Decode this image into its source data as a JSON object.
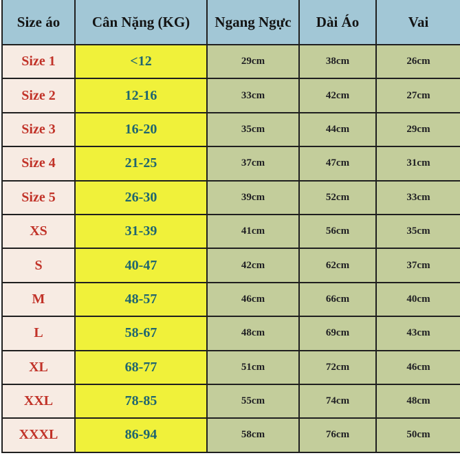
{
  "chart_data": {
    "type": "table",
    "title": "",
    "columns": [
      "Size áo",
      "Cân Nặng (KG)",
      "Ngang Ngực",
      "Dài Áo",
      "Vai"
    ],
    "rows": [
      [
        "Size 1",
        "<12",
        "29cm",
        "38cm",
        "26cm"
      ],
      [
        "Size 2",
        "12-16",
        "33cm",
        "42cm",
        "27cm"
      ],
      [
        "Size 3",
        "16-20",
        "35cm",
        "44cm",
        "29cm"
      ],
      [
        "Size 4",
        "21-25",
        "37cm",
        "47cm",
        "31cm"
      ],
      [
        "Size 5",
        "26-30",
        "39cm",
        "52cm",
        "33cm"
      ],
      [
        "XS",
        "31-39",
        "41cm",
        "56cm",
        "35cm"
      ],
      [
        "S",
        "40-47",
        "42cm",
        "62cm",
        "37cm"
      ],
      [
        "M",
        "48-57",
        "46cm",
        "66cm",
        "40cm"
      ],
      [
        "L",
        "58-67",
        "48cm",
        "69cm",
        "43cm"
      ],
      [
        "XL",
        "68-77",
        "51cm",
        "72cm",
        "46cm"
      ],
      [
        "XXL",
        "78-85",
        "55cm",
        "74cm",
        "48cm"
      ],
      [
        "XXXL",
        "86-94",
        "58cm",
        "76cm",
        "50cm"
      ]
    ],
    "layout": {
      "grid": true,
      "header_row": true
    }
  },
  "colors": {
    "header_bg": "#a2c7d6",
    "size_col_bg": "#f7ebe3",
    "weight_col_bg": "#f0f13a",
    "measure_col_bg": "#c3cd9b",
    "border": "#1f1f1f",
    "size_text": "#c13228",
    "weight_text": "#1f6570",
    "measure_text": "#1f1f23",
    "header_text": "#141414"
  }
}
